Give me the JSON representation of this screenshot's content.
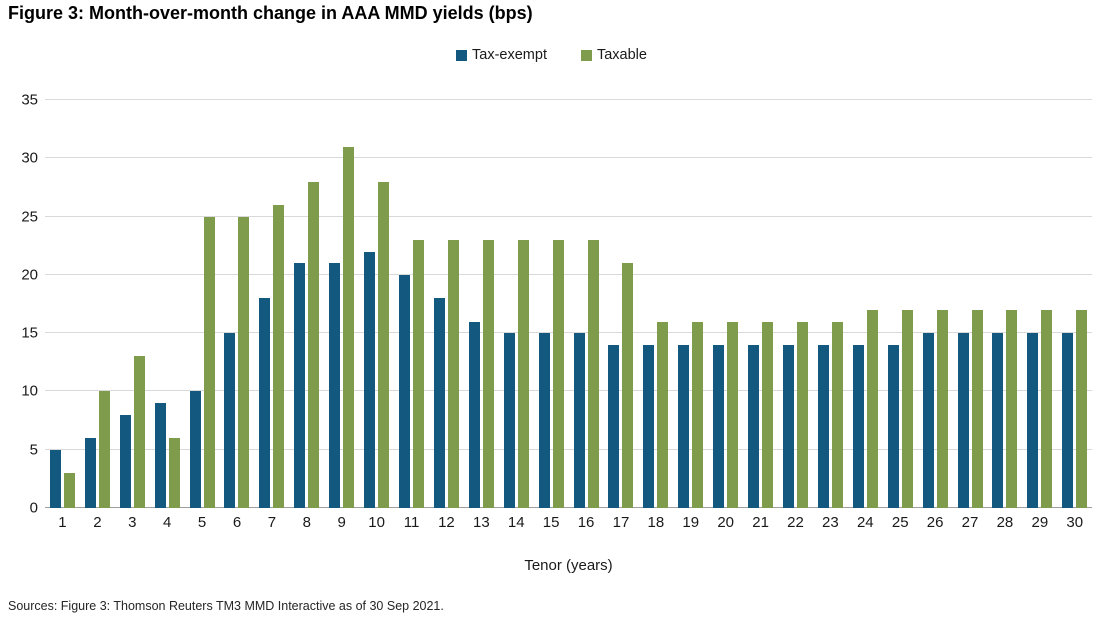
{
  "title": "Figure 3: Month-over-month change in AAA MMD yields (bps)",
  "source_note": "Sources: Figure 3: Thomson Reuters TM3 MMD Interactive as of 30 Sep 2021.",
  "chart_data": {
    "type": "bar",
    "title": "Figure 3: Month-over-month change in AAA MMD yields (bps)",
    "xlabel": "Tenor (years)",
    "ylabel": "",
    "ylim": [
      0,
      35
    ],
    "ytick_step": 5,
    "ytick_labels": [
      "0",
      "5",
      "10",
      "15",
      "20",
      "25",
      "30",
      "35"
    ],
    "grid": true,
    "legend_position": "top-center",
    "categories": [
      "1",
      "2",
      "3",
      "4",
      "5",
      "6",
      "7",
      "8",
      "9",
      "10",
      "11",
      "12",
      "13",
      "14",
      "15",
      "16",
      "17",
      "18",
      "19",
      "20",
      "21",
      "22",
      "23",
      "24",
      "25",
      "26",
      "27",
      "28",
      "29",
      "30"
    ],
    "series": [
      {
        "name": "Tax-exempt",
        "color": "#13587e",
        "values": [
          5,
          6,
          8,
          9,
          10,
          15,
          18,
          21,
          21,
          22,
          20,
          18,
          16,
          15,
          15,
          15,
          14,
          14,
          14,
          14,
          14,
          14,
          14,
          14,
          14,
          15,
          15,
          15,
          15,
          15
        ]
      },
      {
        "name": "Taxable",
        "color": "#7e9c4b",
        "values": [
          3,
          10,
          13,
          6,
          25,
          25,
          26,
          28,
          31,
          28,
          23,
          23,
          23,
          23,
          23,
          23,
          21,
          16,
          16,
          16,
          16,
          16,
          16,
          17,
          17,
          17,
          17,
          17,
          17,
          17
        ]
      }
    ],
    "colors": {
      "gridline": "#d9d9d9",
      "axis_line": "#9e9e9e",
      "text": "#1a1a1a"
    }
  }
}
